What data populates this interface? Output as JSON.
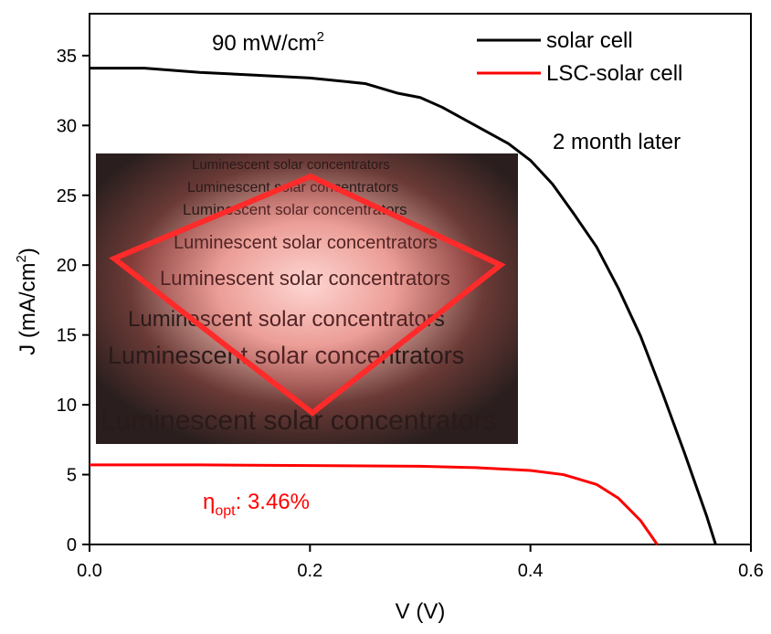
{
  "chart_data": {
    "type": "line",
    "x_label": "V (V)",
    "y_label": {
      "text": "J (mA/cm",
      "sup": "2",
      "tail": ")"
    },
    "annotations": {
      "irradiance": {
        "text": "90 mW/cm",
        "sup": "2"
      },
      "time": "2 month later",
      "efficiency": {
        "symbol": "η",
        "sub": "opt",
        "text": ": 3.46%"
      }
    },
    "inset_text": "Luminescent solar concentrators",
    "xlim": [
      0,
      0.6
    ],
    "ylim": [
      0,
      38
    ],
    "xticks": [
      {
        "value": 0,
        "label": "0.0"
      },
      0.2,
      0.4,
      0.6
    ],
    "yticks": [
      0,
      5,
      10,
      15,
      20,
      25,
      30,
      35
    ],
    "legend": "upper right",
    "series": [
      {
        "name": "solar cell",
        "color": "#000000",
        "x": [
          0,
          0.05,
          0.1,
          0.15,
          0.2,
          0.25,
          0.28,
          0.3,
          0.32,
          0.35,
          0.38,
          0.4,
          0.42,
          0.44,
          0.46,
          0.48,
          0.5,
          0.52,
          0.54,
          0.56,
          0.568
        ],
        "values": [
          34.1,
          34.1,
          33.8,
          33.6,
          33.4,
          33.0,
          32.3,
          32.0,
          31.3,
          30.0,
          28.7,
          27.5,
          25.8,
          23.6,
          21.3,
          18.3,
          14.9,
          10.8,
          6.5,
          2.0,
          0
        ]
      },
      {
        "name": "LSC-solar cell",
        "color": "#ff0000",
        "x": [
          0,
          0.1,
          0.2,
          0.3,
          0.35,
          0.4,
          0.43,
          0.46,
          0.48,
          0.5,
          0.515
        ],
        "values": [
          5.7,
          5.7,
          5.65,
          5.6,
          5.5,
          5.3,
          5.0,
          4.3,
          3.3,
          1.7,
          0
        ]
      }
    ]
  }
}
